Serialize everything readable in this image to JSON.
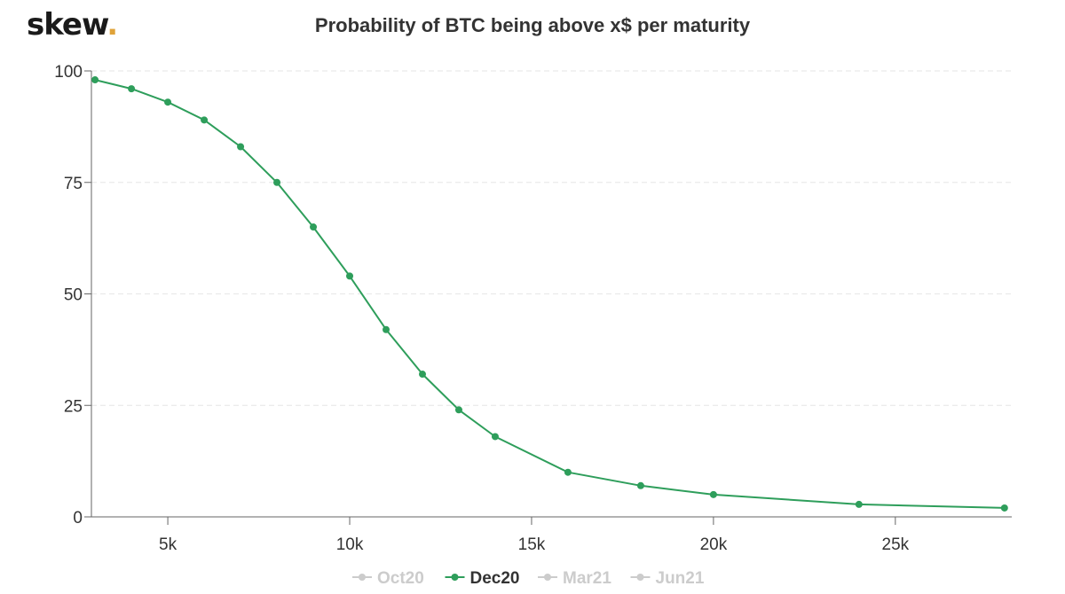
{
  "logo": {
    "text": "skew",
    "dot": ".",
    "dot_color": "#e0a33a"
  },
  "chart_data": {
    "type": "line",
    "title": "Probability of BTC being above x$ per maturity",
    "xlabel": "",
    "ylabel": "",
    "xlim": [
      2900,
      28200
    ],
    "ylim": [
      0,
      100
    ],
    "x_ticks": [
      5000,
      10000,
      15000,
      20000,
      25000
    ],
    "x_tick_labels": [
      "5k",
      "10k",
      "15k",
      "20k",
      "25k"
    ],
    "y_ticks": [
      0,
      25,
      50,
      75,
      100
    ],
    "y_tick_labels": [
      "0",
      "25",
      "50",
      "75",
      "100"
    ],
    "grid": "horizontal dashed",
    "legend_position": "bottom-center",
    "legend": [
      {
        "name": "Oct20",
        "active": false,
        "color": "#cccccc"
      },
      {
        "name": "Dec20",
        "active": true,
        "color": "#2e9e5b"
      },
      {
        "name": "Mar21",
        "active": false,
        "color": "#cccccc"
      },
      {
        "name": "Jun21",
        "active": false,
        "color": "#cccccc"
      }
    ],
    "series": [
      {
        "name": "Dec20",
        "color": "#2e9e5b",
        "x": [
          3000,
          4000,
          5000,
          6000,
          7000,
          8000,
          9000,
          10000,
          11000,
          12000,
          13000,
          14000,
          16000,
          18000,
          20000,
          24000,
          28000
        ],
        "y": [
          98,
          96,
          93,
          89,
          83,
          75,
          65,
          54,
          42,
          32,
          24,
          18,
          10,
          7,
          5,
          2.8,
          2
        ]
      }
    ]
  }
}
